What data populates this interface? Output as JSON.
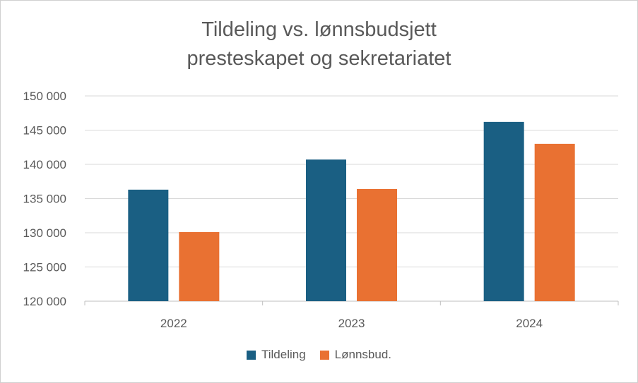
{
  "chart_data": {
    "type": "bar",
    "title_lines": [
      "Tildeling vs. lønnsbudsjett",
      "presteskapet og sekretariatet"
    ],
    "categories": [
      "2022",
      "2023",
      "2024"
    ],
    "series": [
      {
        "name": "Tildeling",
        "color": "#1A5F83",
        "values": [
          136300,
          140700,
          146200
        ]
      },
      {
        "name": "Lønnsbud.",
        "color": "#E97132",
        "values": [
          130100,
          136400,
          143000
        ]
      }
    ],
    "ylim": [
      120000,
      150000
    ],
    "y_ticks": [
      "120 000",
      "125 000",
      "130 000",
      "135 000",
      "140 000",
      "145 000",
      "150 000"
    ],
    "y_tick_values": [
      120000,
      125000,
      130000,
      135000,
      140000,
      145000,
      150000
    ],
    "grid": true,
    "legend_position": "bottom"
  }
}
